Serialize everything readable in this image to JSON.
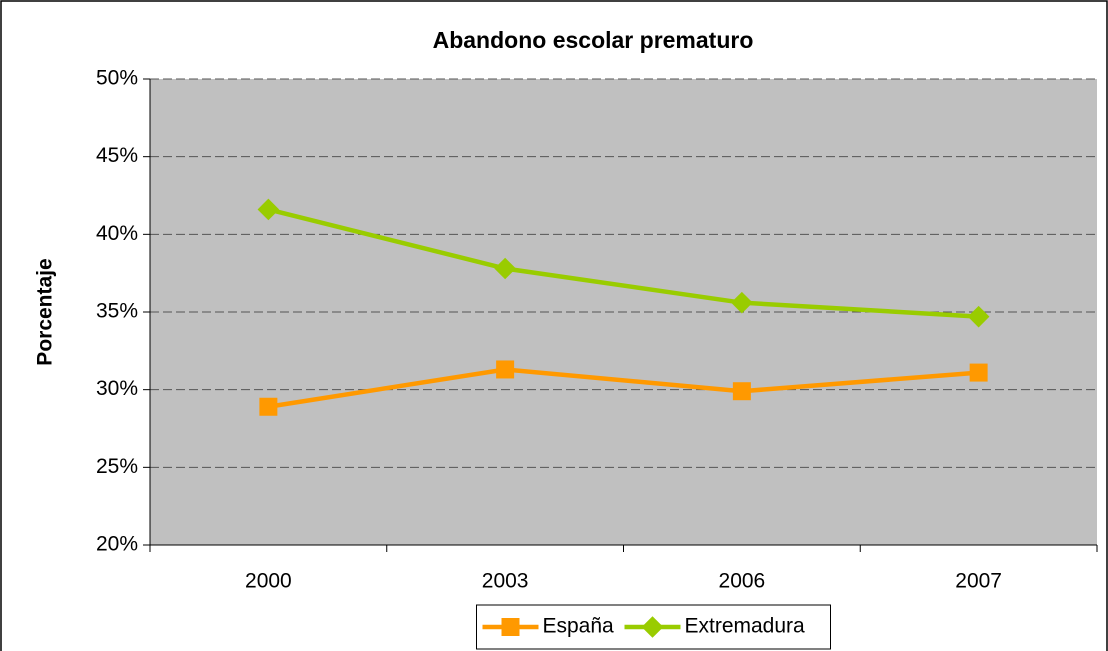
{
  "chart_data": {
    "type": "line",
    "title": "Abandono escolar prematuro",
    "y_label": "Porcentaje",
    "categories": [
      "2000",
      "2003",
      "2006",
      "2007"
    ],
    "series": [
      {
        "name": "España",
        "color": "#ff9900",
        "marker": "square",
        "values": [
          28.9,
          31.3,
          29.9,
          31.1
        ]
      },
      {
        "name": "Extremadura",
        "color": "#99cc00",
        "marker": "diamond",
        "values": [
          41.6,
          37.8,
          35.6,
          34.7
        ]
      }
    ],
    "ylim": [
      20,
      50
    ],
    "yticks": [
      {
        "value": 20,
        "label": "20%"
      },
      {
        "value": 25,
        "label": "25%"
      },
      {
        "value": 30,
        "label": "30%"
      },
      {
        "value": 35,
        "label": "35%"
      },
      {
        "value": 40,
        "label": "40%"
      },
      {
        "value": 45,
        "label": "45%"
      },
      {
        "value": 50,
        "label": "50%"
      }
    ],
    "grid": true,
    "legend": "bottom"
  }
}
